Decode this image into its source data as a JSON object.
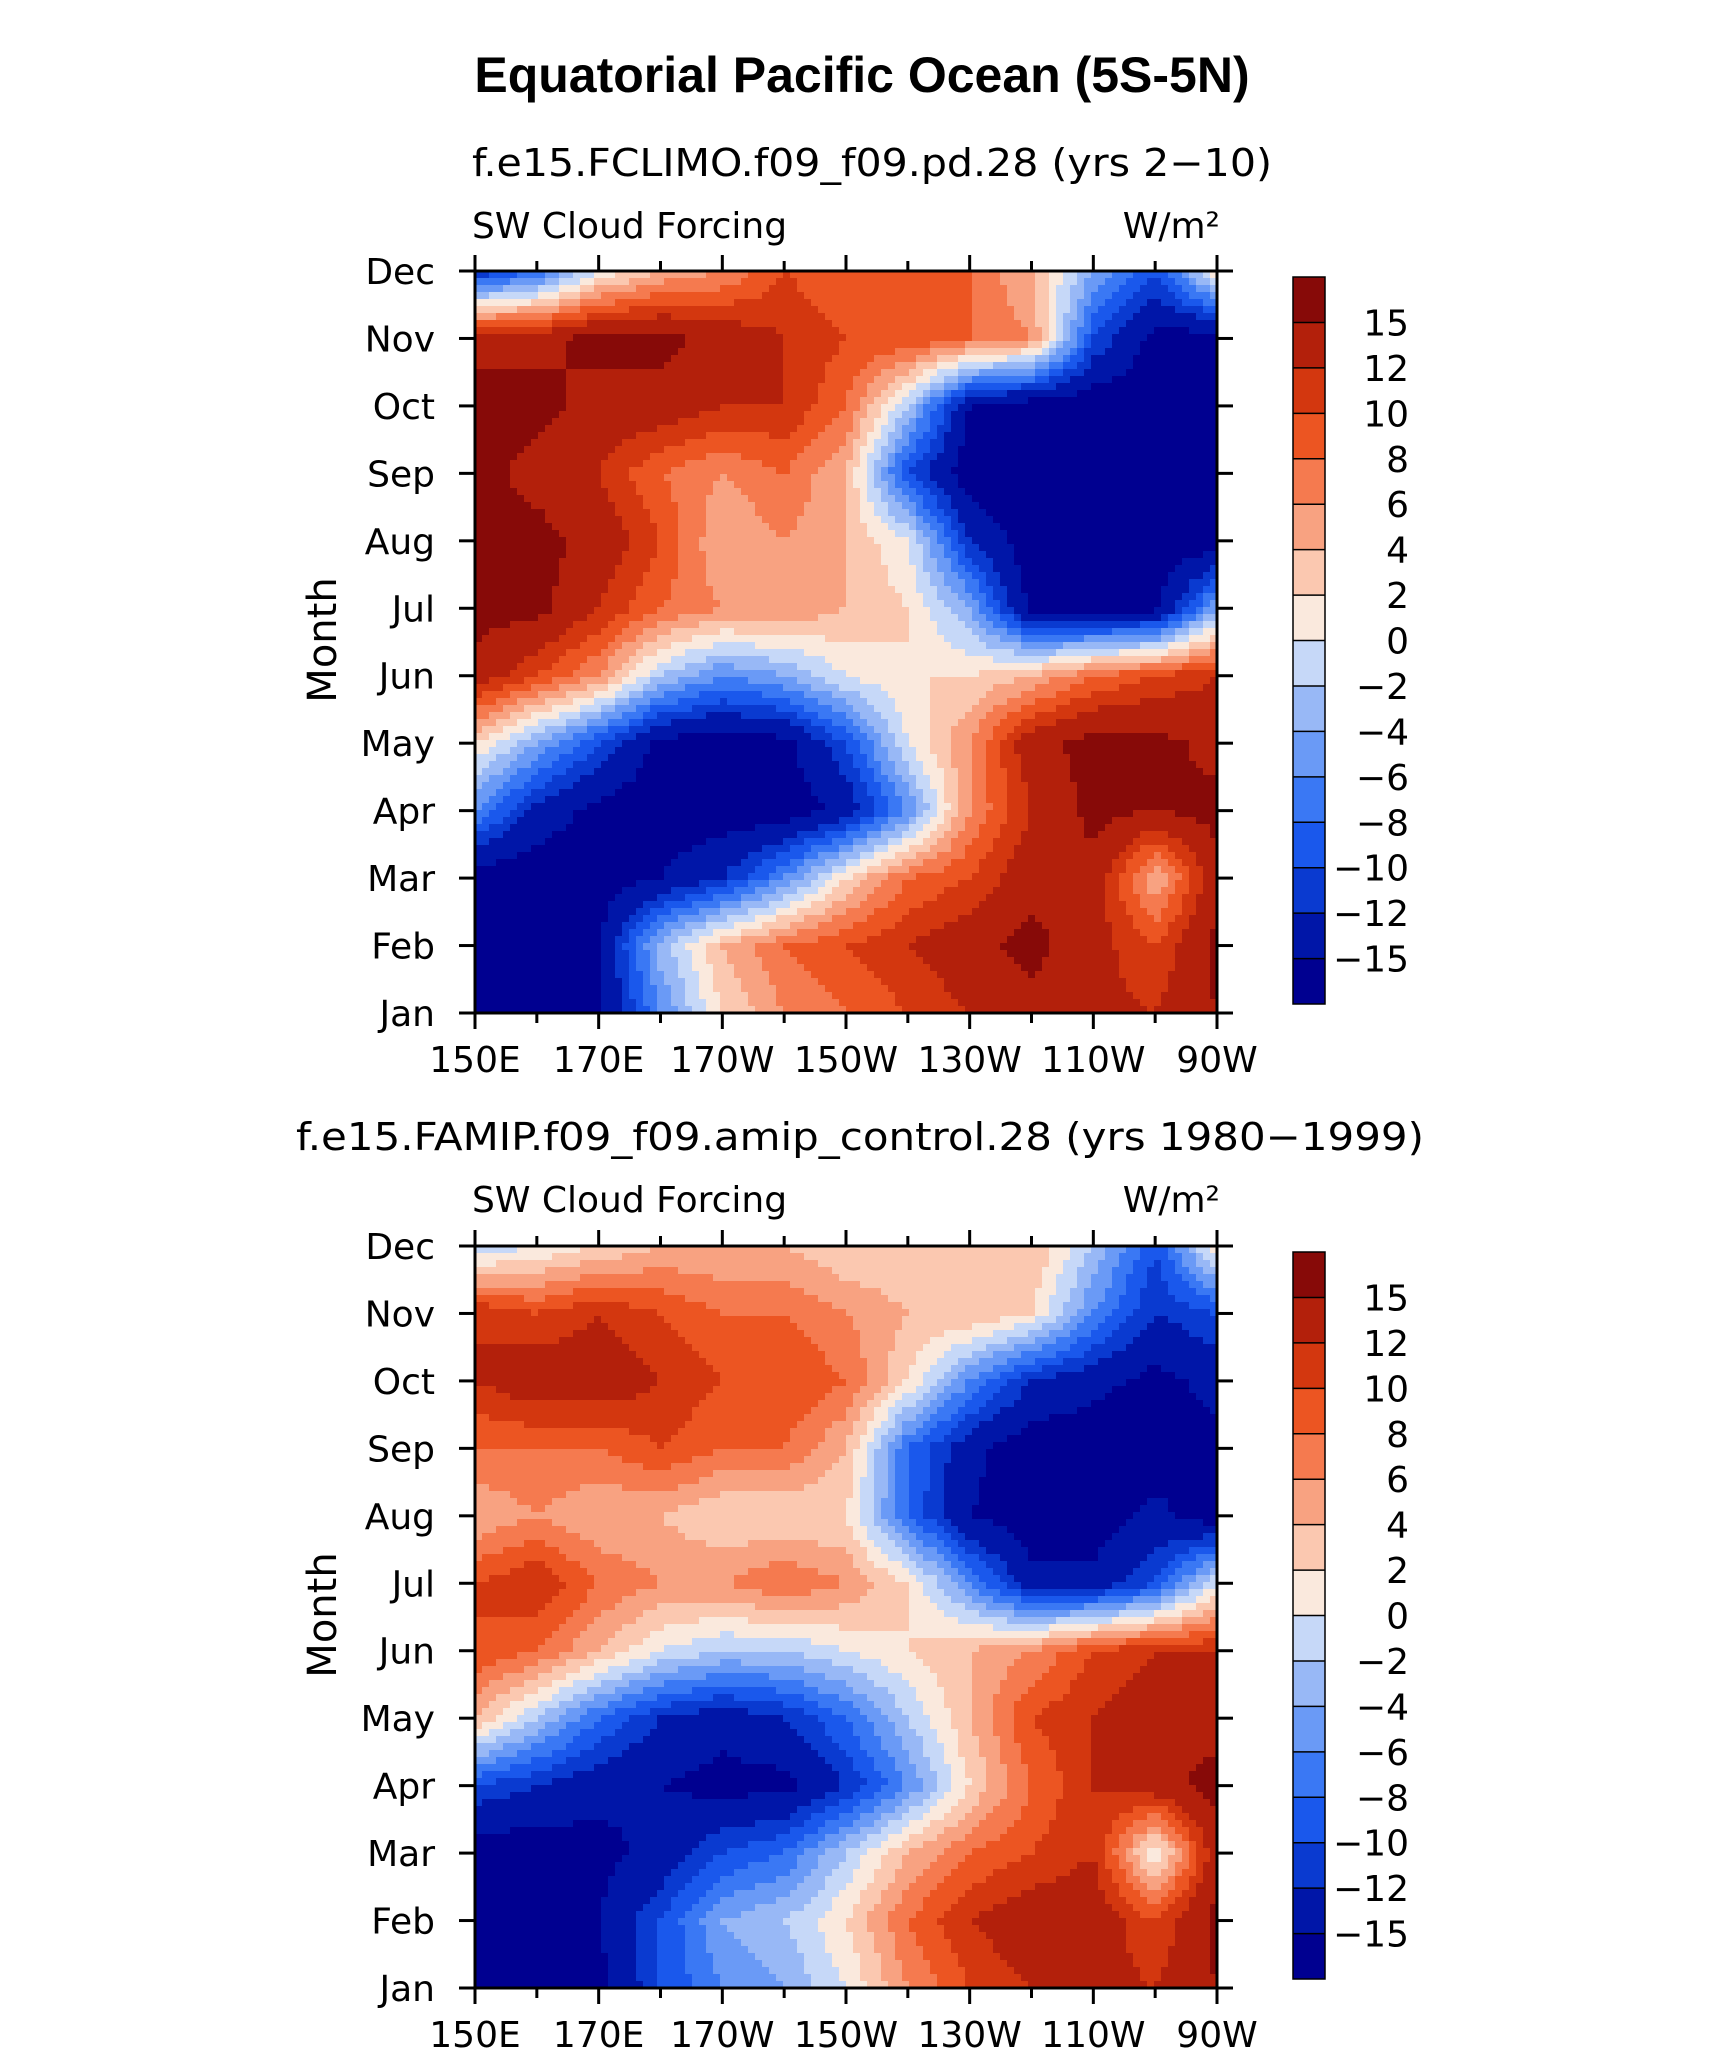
{
  "figure": {
    "title": "Equatorial Pacific Ocean (5S-5N)"
  },
  "chart_data": [
    {
      "type": "heatmap",
      "title": "f.e15.FCLIMO.f09_f09.pd.28 (yrs 2−10)",
      "left_label": "SW Cloud Forcing",
      "right_label": "W/m²",
      "ylabel": "Month",
      "xlabel": "",
      "x_ticks": [
        "150E",
        "170E",
        "170W",
        "150W",
        "130W",
        "110W",
        "90W"
      ],
      "y_ticks": [
        "Jan",
        "Feb",
        "Mar",
        "Apr",
        "May",
        "Jun",
        "Jul",
        "Aug",
        "Sep",
        "Oct",
        "Nov",
        "Dec"
      ],
      "xlim": [
        150,
        270
      ],
      "colorbar_labels": [
        "15",
        "12",
        "10",
        "8",
        "6",
        "4",
        "2",
        "0",
        "−2",
        "−4",
        "−6",
        "−8",
        "−10",
        "−12",
        "−15"
      ],
      "field": {
        "x": [
          150,
          160,
          170,
          180,
          190,
          200,
          210,
          220,
          230,
          240,
          250,
          260,
          270
        ],
        "months": [
          "Jan",
          "Feb",
          "Mar",
          "Apr",
          "May",
          "Jun",
          "Jul",
          "Aug",
          "Sep",
          "Oct",
          "Nov",
          "Dec"
        ],
        "z": [
          [
            -17,
            -17,
            -16,
            -6,
            2,
            6,
            8,
            10,
            12,
            14,
            13,
            12,
            15
          ],
          [
            -17,
            -17,
            -15,
            -3,
            4,
            8,
            10,
            12,
            14,
            16,
            13,
            10,
            16
          ],
          [
            -17,
            -17,
            -17,
            -15,
            -12,
            -6,
            2,
            8,
            10,
            14,
            14,
            4,
            14
          ],
          [
            -6,
            -13,
            -16,
            -17,
            -17,
            -17,
            -14,
            -6,
            6,
            12,
            16,
            15,
            16
          ],
          [
            2,
            -4,
            -10,
            -16,
            -17,
            -16,
            -10,
            0,
            6,
            14,
            16,
            16,
            14
          ],
          [
            14,
            10,
            6,
            -2,
            -6,
            -4,
            0,
            2,
            2,
            4,
            8,
            10,
            12
          ],
          [
            16,
            16,
            12,
            8,
            6,
            6,
            4,
            2,
            -4,
            -16,
            -17,
            -16,
            -4
          ],
          [
            16,
            16,
            14,
            10,
            4,
            6,
            4,
            0,
            -12,
            -17,
            -17,
            -17,
            -17
          ],
          [
            16,
            14,
            12,
            8,
            6,
            8,
            4,
            -10,
            -17,
            -17,
            -17,
            -17,
            -17
          ],
          [
            16,
            16,
            14,
            14,
            12,
            12,
            8,
            -2,
            -15,
            -17,
            -17,
            -17,
            -17
          ],
          [
            14,
            14,
            16,
            16,
            14,
            12,
            10,
            10,
            8,
            6,
            -10,
            -16,
            -17
          ],
          [
            -12,
            -8,
            0,
            4,
            6,
            10,
            8,
            8,
            8,
            4,
            -4,
            -10,
            2
          ]
        ]
      }
    },
    {
      "type": "heatmap",
      "title": "f.e15.FAMIP.f09_f09.amip_control.28 (yrs 1980−1999)",
      "left_label": "SW Cloud Forcing",
      "right_label": "W/m²",
      "ylabel": "Month",
      "xlabel": "",
      "x_ticks": [
        "150E",
        "170E",
        "170W",
        "150W",
        "130W",
        "110W",
        "90W"
      ],
      "y_ticks": [
        "Jan",
        "Feb",
        "Mar",
        "Apr",
        "May",
        "Jun",
        "Jul",
        "Aug",
        "Sep",
        "Oct",
        "Nov",
        "Dec"
      ],
      "xlim": [
        150,
        270
      ],
      "colorbar_labels": [
        "15",
        "12",
        "10",
        "8",
        "6",
        "4",
        "2",
        "0",
        "−2",
        "−4",
        "−6",
        "−8",
        "−10",
        "−12",
        "−15"
      ],
      "field": {
        "x": [
          150,
          160,
          170,
          180,
          190,
          200,
          210,
          220,
          230,
          240,
          250,
          260,
          270
        ],
        "months": [
          "Jan",
          "Feb",
          "Mar",
          "Apr",
          "May",
          "Jun",
          "Jul",
          "Aug",
          "Sep",
          "Oct",
          "Nov",
          "Dec"
        ],
        "z": [
          [
            -17,
            -17,
            -16,
            -10,
            -6,
            -4,
            0,
            6,
            10,
            12,
            13,
            12,
            15
          ],
          [
            -17,
            -17,
            -15,
            -10,
            -4,
            -2,
            2,
            8,
            12,
            14,
            14,
            10,
            16
          ],
          [
            -17,
            -17,
            -16,
            -14,
            -10,
            -8,
            -2,
            4,
            8,
            10,
            12,
            0,
            14
          ],
          [
            -10,
            -12,
            -14,
            -15,
            -16,
            -16,
            -12,
            -6,
            2,
            8,
            12,
            14,
            16
          ],
          [
            4,
            -2,
            -8,
            -12,
            -14,
            -12,
            -8,
            -2,
            4,
            10,
            12,
            14,
            14
          ],
          [
            10,
            8,
            4,
            0,
            -2,
            -2,
            0,
            2,
            4,
            6,
            10,
            12,
            12
          ],
          [
            10,
            12,
            8,
            6,
            6,
            8,
            6,
            2,
            -6,
            -14,
            -14,
            -10,
            0
          ],
          [
            4,
            6,
            4,
            4,
            2,
            2,
            2,
            -8,
            -15,
            -17,
            -17,
            -14,
            -17
          ],
          [
            8,
            8,
            8,
            10,
            8,
            8,
            4,
            -8,
            -14,
            -17,
            -17,
            -17,
            -16
          ],
          [
            12,
            14,
            14,
            12,
            10,
            10,
            8,
            2,
            -6,
            -12,
            -14,
            -16,
            -14
          ],
          [
            12,
            10,
            12,
            10,
            8,
            8,
            6,
            4,
            4,
            2,
            -6,
            -12,
            -10
          ],
          [
            -2,
            0,
            2,
            4,
            4,
            4,
            2,
            2,
            2,
            4,
            -2,
            -10,
            2
          ]
        ]
      }
    }
  ],
  "colormap": {
    "thresholds": [
      -15,
      -12,
      -10,
      -8,
      -6,
      -4,
      -2,
      0,
      2,
      4,
      6,
      8,
      10,
      12,
      15
    ],
    "colors": [
      "#000090",
      "#0016a8",
      "#0a3ad0",
      "#1a58ec",
      "#3a78f4",
      "#6a9af6",
      "#98b8f6",
      "#c6d8f8",
      "#fae9dd",
      "#fbc8b0",
      "#f8a281",
      "#f57a4f",
      "#ec5522",
      "#d3370f",
      "#b3200b",
      "#870a08"
    ]
  }
}
